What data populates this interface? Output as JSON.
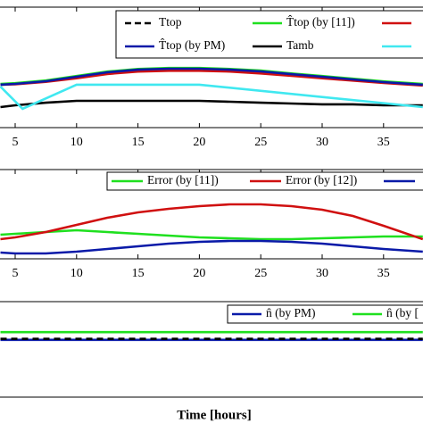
{
  "chart_data": [
    {
      "type": "line",
      "xlim": [
        3.8,
        38.2
      ],
      "ylim": [
        0,
        10
      ],
      "xticks": [
        5,
        10,
        15,
        20,
        25,
        30,
        35
      ],
      "series": [
        {
          "name": "Ttop",
          "color": "#000000",
          "dash": true,
          "x": [
            3.8,
            5,
            7.5,
            10,
            12.5,
            15,
            17.5,
            20,
            22.5,
            25,
            27.5,
            30,
            32.5,
            35,
            38.2
          ],
          "values": [
            3.56,
            3.63,
            3.85,
            4.22,
            4.59,
            4.81,
            4.89,
            4.89,
            4.81,
            4.67,
            4.44,
            4.22,
            4.0,
            3.78,
            3.56
          ]
        },
        {
          "name": "T̂top (by [11])",
          "color": "#1fe01f",
          "x": [
            3.8,
            5,
            7.5,
            10,
            12.5,
            15,
            17.5,
            20,
            22.5,
            25,
            27.5,
            30,
            32.5,
            35,
            38.2
          ],
          "values": [
            3.62,
            3.69,
            3.91,
            4.28,
            4.65,
            4.87,
            4.95,
            4.95,
            4.87,
            4.73,
            4.5,
            4.28,
            4.06,
            3.84,
            3.62
          ]
        },
        {
          "color": "#d01010",
          "x": [
            3.8,
            5,
            7.5,
            10,
            12.5,
            15,
            17.5,
            20,
            22.5,
            25,
            27.5,
            30,
            32.5,
            35,
            38.2
          ],
          "values": [
            3.56,
            3.6,
            3.8,
            4.1,
            4.45,
            4.65,
            4.72,
            4.72,
            4.65,
            4.5,
            4.3,
            4.1,
            3.9,
            3.7,
            3.5
          ]
        },
        {
          "name": "T̂top (by PM)",
          "color": "#0a1aa8",
          "x": [
            3.8,
            5,
            7.5,
            10,
            12.5,
            15,
            17.5,
            20,
            22.5,
            25,
            27.5,
            30,
            32.5,
            35,
            38.2
          ],
          "values": [
            3.56,
            3.63,
            3.85,
            4.22,
            4.59,
            4.81,
            4.89,
            4.89,
            4.81,
            4.67,
            4.44,
            4.22,
            4.0,
            3.78,
            3.56
          ]
        },
        {
          "name": "Tamb",
          "color": "#000000",
          "x": [
            3.8,
            5,
            7.5,
            10,
            12.5,
            15,
            17.5,
            20,
            22.5,
            25,
            27.5,
            30,
            32.5,
            35,
            38.2
          ],
          "values": [
            1.7,
            1.85,
            2.07,
            2.22,
            2.22,
            2.22,
            2.22,
            2.22,
            2.15,
            2.07,
            2.0,
            1.93,
            1.93,
            1.85,
            1.85
          ]
        },
        {
          "color": "#40e8f0",
          "x": [
            3.8,
            5.6,
            10,
            20,
            38.2
          ],
          "values": [
            3.41,
            1.56,
            3.56,
            3.56,
            1.7
          ]
        }
      ]
    },
    {
      "type": "line",
      "xlim": [
        3.8,
        38.2
      ],
      "ylim": [
        0,
        10
      ],
      "xticks": [
        5,
        10,
        15,
        20,
        25,
        30,
        35
      ],
      "series": [
        {
          "name": "Error (by [11])",
          "color": "#1fe01f",
          "x": [
            3.8,
            5,
            7.5,
            10,
            12.5,
            15,
            17.5,
            20,
            22.5,
            25,
            27.5,
            30,
            32.5,
            35,
            38.2
          ],
          "values": [
            2.7,
            2.8,
            3.0,
            3.2,
            3.0,
            2.8,
            2.6,
            2.4,
            2.3,
            2.2,
            2.2,
            2.3,
            2.4,
            2.5,
            2.5
          ]
        },
        {
          "name": "Error (by [12])",
          "color": "#d01010",
          "x": [
            3.8,
            5,
            7.5,
            10,
            12.5,
            15,
            17.5,
            20,
            22.5,
            25,
            27.5,
            30,
            32.5,
            35,
            38.2
          ],
          "values": [
            2.2,
            2.4,
            3.0,
            3.8,
            4.6,
            5.2,
            5.6,
            5.9,
            6.1,
            6.1,
            5.9,
            5.5,
            4.8,
            3.7,
            2.2
          ]
        },
        {
          "color": "#0a1aa8",
          "x": [
            3.8,
            5,
            7.5,
            10,
            12.5,
            15,
            17.5,
            20,
            22.5,
            25,
            27.5,
            30,
            32.5,
            35,
            38.2
          ],
          "values": [
            0.7,
            0.6,
            0.6,
            0.8,
            1.1,
            1.4,
            1.7,
            1.9,
            2.0,
            2.0,
            1.9,
            1.7,
            1.4,
            1.1,
            0.8
          ]
        }
      ]
    },
    {
      "type": "line",
      "xlim": [
        3.8,
        38.2
      ],
      "ylim": [
        0,
        10
      ],
      "xlabel": "Time [hours]",
      "series": [
        {
          "name": "n̂ (by PM)",
          "color": "#0a1aa8",
          "x": [
            3.8,
            38.2
          ],
          "values": [
            6.0,
            6.0
          ]
        },
        {
          "name": "n̂ (by [",
          "color": "#1fe01f",
          "x": [
            3.8,
            38.2
          ],
          "values": [
            6.8,
            6.8
          ]
        },
        {
          "color": "#000000",
          "dash": true,
          "x": [
            3.8,
            38.2
          ],
          "values": [
            6.1,
            6.1
          ]
        }
      ]
    }
  ]
}
